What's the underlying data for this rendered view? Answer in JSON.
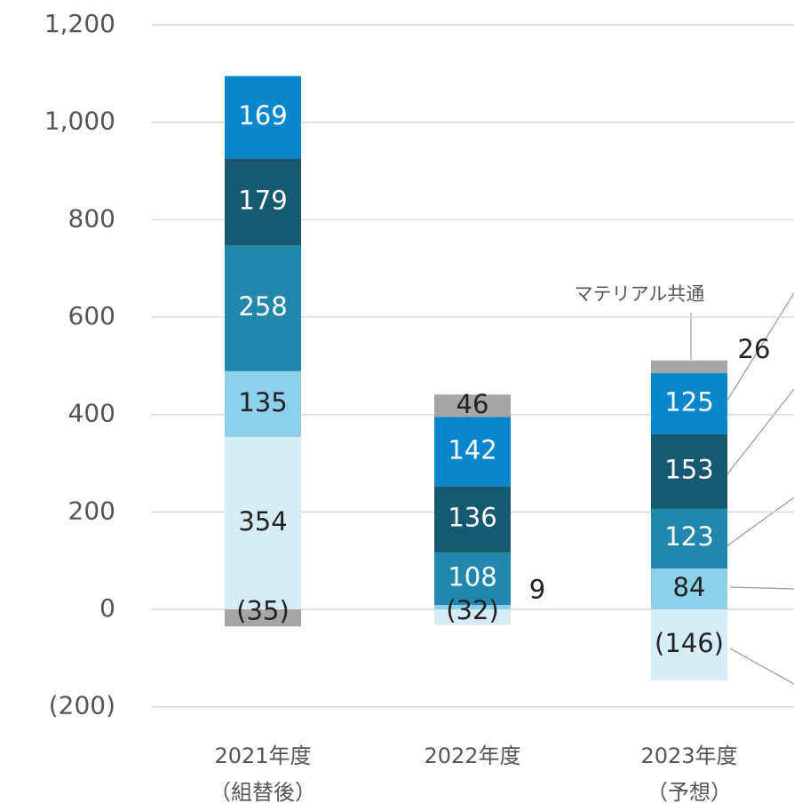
{
  "chart_data": {
    "type": "stacked_bar",
    "categories": [
      "2021年度",
      "2022年度",
      "2023年度"
    ],
    "category_notes": [
      "（組替後）",
      null,
      "（予想）"
    ],
    "series": [
      {
        "color": "#d5edf7",
        "text_color": "#222222",
        "values": [
          354,
          -32,
          -146
        ],
        "value_labels": [
          "354",
          "(32)",
          "(146)"
        ]
      },
      {
        "color": "#8ecfea",
        "text_color": "#222222",
        "values": [
          135,
          9,
          84
        ]
      },
      {
        "color": "#2387ac",
        "text_color": "#ffffff",
        "values": [
          258,
          108,
          123
        ]
      },
      {
        "color": "#17596e",
        "text_color": "#ffffff",
        "values": [
          179,
          136,
          153
        ]
      },
      {
        "color": "#0a86cc",
        "text_color": "#ffffff",
        "values": [
          169,
          142,
          125
        ]
      },
      {
        "color": "#a6a6a6",
        "text_color": "#222222",
        "values": [
          -35,
          46,
          26
        ],
        "value_labels": [
          "(35)",
          "46",
          "26"
        ]
      }
    ],
    "annotation": "マテリアル共通",
    "ylim": [
      -200,
      1200
    ],
    "yticks": [
      {
        "value": -200,
        "label": "(200)"
      },
      0,
      200,
      400,
      600,
      800,
      {
        "value": 1000,
        "label": "1,000"
      },
      {
        "value": 1200,
        "label": "1,200"
      }
    ],
    "grid": true
  }
}
